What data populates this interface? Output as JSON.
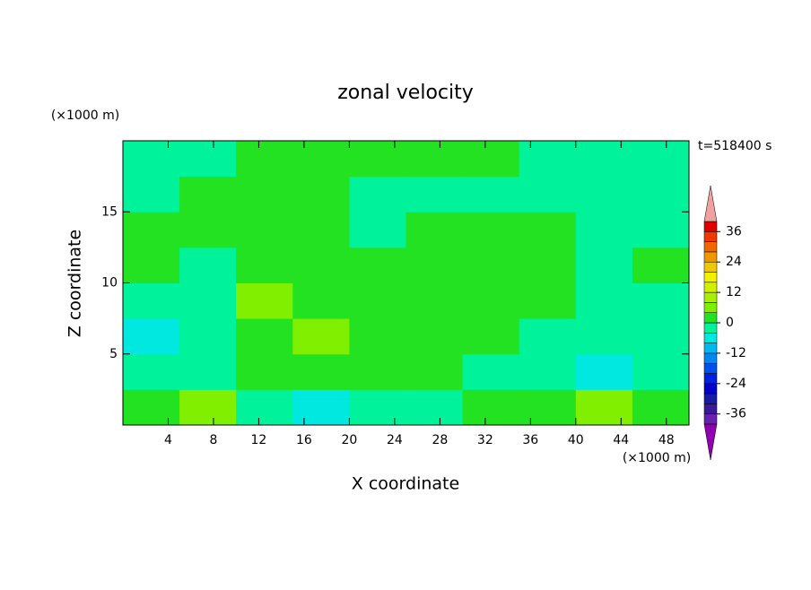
{
  "chart_data": {
    "type": "contour",
    "title": "zonal velocity",
    "x_label": "X coordinate",
    "y_label": "Z coordinate",
    "x_unit": "(×1000 m)",
    "y_unit": "(×1000 m)",
    "time_label": "t=518400 s",
    "xlim": [
      0,
      50
    ],
    "ylim": [
      0,
      20
    ],
    "xticks": [
      4,
      8,
      12,
      16,
      20,
      24,
      28,
      32,
      36,
      40,
      44,
      48
    ],
    "yticks": [
      5,
      10,
      15
    ],
    "x": [
      2.5,
      7.5,
      12.5,
      17.5,
      22.5,
      27.5,
      32.5,
      37.5,
      42.5,
      47.5
    ],
    "z": [
      1.25,
      3.75,
      6.25,
      8.75,
      11.25,
      13.75,
      16.25,
      18.75
    ],
    "values": [
      [
        2,
        6,
        -2,
        -6,
        -2,
        -2,
        2,
        2,
        6,
        2
      ],
      [
        -2,
        -2,
        2,
        2,
        2,
        2,
        -2,
        -2,
        -6,
        -2
      ],
      [
        -6,
        -2,
        2,
        6,
        2,
        2,
        2,
        -2,
        -2,
        -2
      ],
      [
        -2,
        -2,
        6,
        2,
        2,
        2,
        2,
        2,
        -2,
        -2
      ],
      [
        2,
        -2,
        2,
        2,
        2,
        2,
        2,
        2,
        -2,
        2
      ],
      [
        2,
        2,
        2,
        2,
        -2,
        2,
        2,
        2,
        -2,
        -2
      ],
      [
        -2,
        2,
        2,
        2,
        -2,
        -2,
        -2,
        -2,
        -2,
        -2
      ],
      [
        -2,
        -2,
        2,
        2,
        2,
        2,
        2,
        -2,
        -2,
        -2
      ]
    ],
    "colorbar": {
      "levels": [
        -40,
        -36,
        -32,
        -28,
        -24,
        -20,
        -16,
        -12,
        -8,
        -4,
        0,
        4,
        8,
        12,
        16,
        20,
        24,
        28,
        32,
        36,
        40
      ],
      "colors": [
        "#6a20b0",
        "#3a1a9a",
        "#1a1aa8",
        "#0000c8",
        "#0020e0",
        "#0050f0",
        "#0088f0",
        "#00b8f0",
        "#00e8e0",
        "#00f29a",
        "#22e222",
        "#80f000",
        "#a8f000",
        "#d0f000",
        "#f0f000",
        "#f0c800",
        "#f09800",
        "#f06800",
        "#f03800",
        "#e00000"
      ],
      "under_color": "#9000b0",
      "over_color": "#f0a0a0",
      "ticks": [
        -36,
        -24,
        -12,
        0,
        12,
        24,
        36
      ]
    }
  }
}
